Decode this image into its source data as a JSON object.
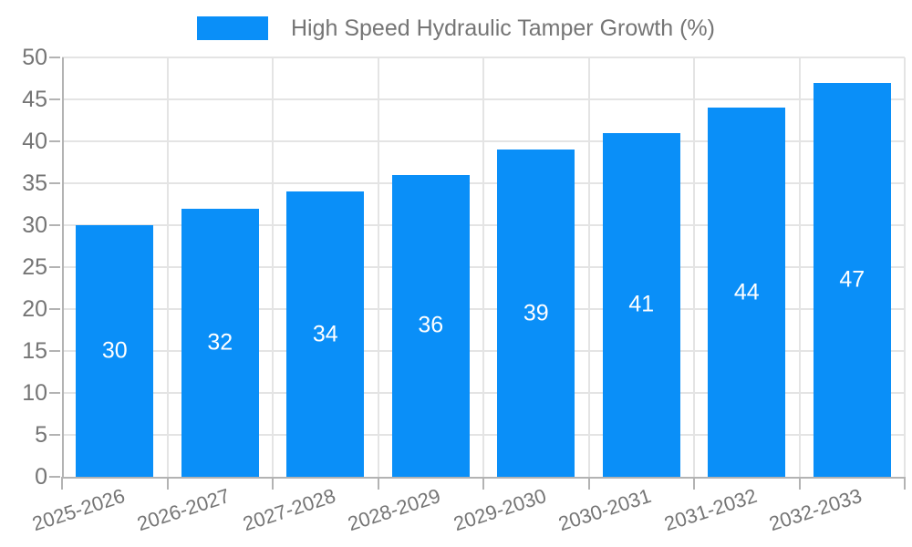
{
  "colors": {
    "bar": "#0a8ff8",
    "grid": "#e4e4e4",
    "axis": "#b3b3b3",
    "tick": "#b3b3b3",
    "text": "#757575",
    "bar_label": "#ffffff",
    "background": "#ffffff"
  },
  "legend": {
    "label": "High Speed Hydraulic Tamper Growth (%)"
  },
  "chart_data": {
    "type": "bar",
    "title": "High Speed Hydraulic Tamper Growth (%)",
    "categories": [
      "2025-2026",
      "2026-2027",
      "2027-2028",
      "2028-2029",
      "2029-2030",
      "2030-2031",
      "2031-2032",
      "2032-2033"
    ],
    "values": [
      30,
      32,
      34,
      36,
      39,
      41,
      44,
      47
    ],
    "xlabel": "",
    "ylabel": "",
    "ylim": [
      0,
      50
    ],
    "ytick_step": 5,
    "yticks": [
      0,
      5,
      10,
      15,
      20,
      25,
      30,
      35,
      40,
      45,
      50
    ],
    "grid": true,
    "legend_position": "top",
    "bar_value_labels": "inside-center"
  }
}
